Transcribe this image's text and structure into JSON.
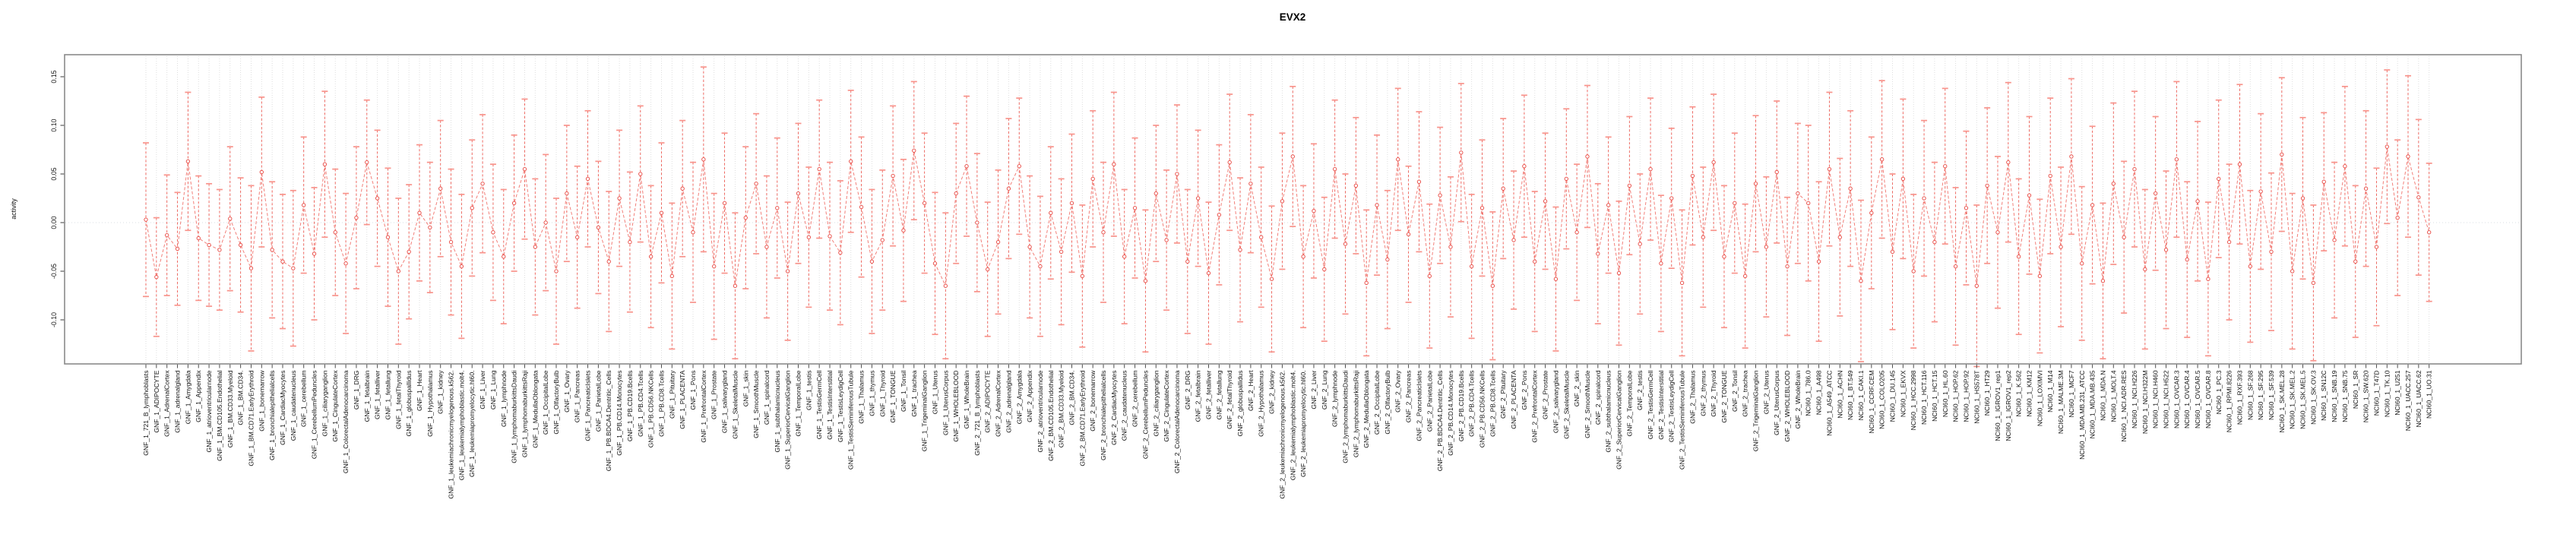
{
  "page": {
    "title": "EVX2"
  },
  "chart_data": {
    "type": "line",
    "subtype": "point-estimates-with-confidence-intervals",
    "title": "EVX2",
    "xlabel": "",
    "ylabel": "activity",
    "ylim": [
      -0.145,
      0.173
    ],
    "yticks": [
      -0.1,
      -0.05,
      0.0,
      0.05,
      0.1,
      0.15
    ],
    "ytick_labels": [
      "-0.10",
      "-0.05",
      "0.00",
      "0.05",
      "0.10",
      "0.15"
    ],
    "grid": {
      "vertical_dotted_per_category": true,
      "horizontal_dotted_zero_line": true
    },
    "legend": "none",
    "colors": {
      "error_bar_line": "#ee5a52",
      "error_bar_cap": "#f8938b",
      "connector_line": "#f2807a",
      "marker_stroke": "#e8453f",
      "marker_fill": "#ffffff",
      "gridline": "#dbdbdb",
      "zero_line": "#d9dee3",
      "frame": "#8a8a8a",
      "text": "#111111"
    },
    "categories": [
      "GNF_1_721_B_lymphoblasts",
      "GNF_1_ADIPOCYTE",
      "GNF_1_AdrenalCortex",
      "GNF_1_adrenalgland",
      "GNF_1_Amygdala",
      "GNF_1_Appendix",
      "GNF_1_atrioventricularnode",
      "GNF_1_BM.CD105.Endothelial",
      "GNF_1_BM.CD33.Myeloid",
      "GNF_1_BM.CD34.",
      "GNF_1_BM.CD71.EarlyErythroid",
      "GNF_1_bonemarrow",
      "GNF_1_bronchialepithelialcells",
      "GNF_1_CardiacMyocytes",
      "GNF_1_caudatenucleus",
      "GNF_1_cerebellum",
      "GNF_1_CerebellumPeduncles",
      "GNF_1_ciliaryganglion",
      "GNF_1_CingulateCortex",
      "GNF_1_ColorectalAdenocarcinoma",
      "GNF_1_DRG",
      "GNF_1_fetalbrain",
      "GNF_1_fetalliver",
      "GNF_1_fetallung",
      "GNF_1_fetalThyroid",
      "GNF_1_globuspallidus",
      "GNF_1_Heart",
      "GNF_1_Hypothalamus",
      "GNF_1_kidney",
      "GNF_1_leukemiachronicmyelogenous.k562.",
      "GNF_1_leukemialymphoblastic.molt4.",
      "GNF_1_leukemiapromyelocytic.hl60.",
      "GNF_1_Liver",
      "GNF_1_Lung",
      "GNF_1_lymphnode",
      "GNF_1_lymphomaburkittsDaudi",
      "GNF_1_lymphomaburkittsRaji",
      "GNF_1_MedullaOblongata",
      "GNF_1_OccipitalLobe",
      "GNF_1_OlfactoryBulb",
      "GNF_1_Ovary",
      "GNF_1_Pancreas",
      "GNF_1_PancreaticIslets",
      "GNF_1_ParietalLobe",
      "GNF_1_PB.BDCA4.Dentritic_Cells",
      "GNF_1_PB.CD14.Monocytes",
      "GNF_1_PB.CD19.Bcells",
      "GNF_1_PB.CD4.Tcells",
      "GNF_1_PB.CD56.NKCells",
      "GNF_1_PB.CD8.Tcells",
      "GNF_1_Pituitary",
      "GNF_1_PLACENTA",
      "GNF_1_Pons",
      "GNF_1_PrefrontalCortex",
      "GNF_1_Prostate",
      "GNF_1_salivarygland",
      "GNF_1_SkeletalMuscle",
      "GNF_1_skin",
      "GNF_1_SmoothMuscle",
      "GNF_1_spinalcord",
      "GNF_1_subthalamicnucleus",
      "GNF_1_SuperiorCervicalGanglion",
      "GNF_1_TemporalLobe",
      "GNF_1_testis",
      "GNF_1_TestisGermCell",
      "GNF_1_TestisInterstitial",
      "GNF_1_TestisLeydigCell",
      "GNF_1_TestisSeminiferousTubule",
      "GNF_1_Thalamus",
      "GNF_1_thymus",
      "GNF_1_Thyroid",
      "GNF_1_TONGUE",
      "GNF_1_Tonsil",
      "GNF_1_trachea",
      "GNF_1_TrigeminalGanglion",
      "GNF_1_Uterus",
      "GNF_1_UterusCorpus",
      "GNF_1_WHOLEBLOOD",
      "GNF_1_WholeBrain",
      "GNF_2_721_B_lymphoblasts",
      "GNF_2_ADIPOCYTE",
      "GNF_2_AdrenalCortex",
      "GNF_2_adrenalgland",
      "GNF_2_Amygdala",
      "GNF_2_Appendix",
      "GNF_2_atrioventricularnode",
      "GNF_2_BM.CD105.Endothelial",
      "GNF_2_BM.CD33.Myeloid",
      "GNF_2_BM.CD34.",
      "GNF_2_BM.CD71.EarlyErythroid",
      "GNF_2_bonemarrow",
      "GNF_2_bronchialepithelialcells",
      "GNF_2_CardiacMyocytes",
      "GNF_2_caudatenucleus",
      "GNF_2_cerebellum",
      "GNF_2_CerebellumPeduncles",
      "GNF_2_ciliaryganglion",
      "GNF_2_CingulateCortex",
      "GNF_2_ColorectalAdenocarcinoma",
      "GNF_2_DRG",
      "GNF_2_fetalbrain",
      "GNF_2_fetalliver",
      "GNF_2_fetallung",
      "GNF_2_fetalThyroid",
      "GNF_2_globuspallidus",
      "GNF_2_Heart",
      "GNF_2_Hypothalamus",
      "GNF_2_kidney",
      "GNF_2_leukemiachronicmyelogenous.k562.",
      "GNF_2_leukemialymphoblastic.molt4.",
      "GNF_2_leukemiapromyelocytic.hl60.",
      "GNF_2_Liver",
      "GNF_2_Lung",
      "GNF_2_lymphnode",
      "GNF_2_lymphomaburkittsDaudi",
      "GNF_2_lymphomaburkittsRaji",
      "GNF_2_MedullaOblongata",
      "GNF_2_OccipitalLobe",
      "GNF_2_OlfactoryBulb",
      "GNF_2_Ovary",
      "GNF_2_Pancreas",
      "GNF_2_PancreaticIslets",
      "GNF_2_ParietalLobe",
      "GNF_2_PB.BDCA4.Dentritic_Cells",
      "GNF_2_PB.CD14.Monocytes",
      "GNF_2_PB.CD19.Bcells",
      "GNF_2_PB.CD4.Tcells",
      "GNF_2_PB.CD56.NKCells",
      "GNF_2_PB.CD8.Tcells",
      "GNF_2_Pituitary",
      "GNF_2_PLACENTA",
      "GNF_2_Pons",
      "GNF_2_PrefrontalCortex",
      "GNF_2_Prostate",
      "GNF_2_salivarygland",
      "GNF_2_SkeletalMuscle",
      "GNF_2_skin",
      "GNF_2_SmoothMuscle",
      "GNF_2_spinalcord",
      "GNF_2_subthalamicnucleus",
      "GNF_2_SuperiorCervicalGanglion",
      "GNF_2_TemporalLobe",
      "GNF_2_testis",
      "GNF_2_TestisGermCell",
      "GNF_2_TestisInterstitial",
      "GNF_2_TestisLeydigCell",
      "GNF_2_TestisSeminiferousTubule",
      "GNF_2_Thalamus",
      "GNF_2_thymus",
      "GNF_2_Thyroid",
      "GNF_2_TONGUE",
      "GNF_2_Tonsil",
      "GNF_2_trachea",
      "GNF_2_TrigeminalGanglion",
      "GNF_2_Uterus",
      "GNF_2_UterusCorpus",
      "GNF_2_WHOLEBLOOD",
      "GNF_2_WholeBrain",
      "NCI60_1_786.0",
      "NCI60_1_A498",
      "NCI60_1_A549_ATCC",
      "NCI60_1_ACHN",
      "NCI60_1_BT.549",
      "NCI60_1_CAKI.1",
      "NCI60_1_CCRF.CEM",
      "NCI60_1_COLO205",
      "NCI60_1_DU.145",
      "NCI60_1_EKVX",
      "NCI60_1_HCC.2998",
      "NCI60_1_HCT.116",
      "NCI60_1_HCT.15",
      "NCI60_1_HL.60",
      "NCI60_1_HOP.62",
      "NCI60_1_HOP.92",
      "NCI60_1_HS578T",
      "NCI60_1_HT29",
      "NCI60_1_IGROV1_rep1",
      "NCI60_1_IGROV1_rep2",
      "NCI60_1_K.562",
      "NCI60_1_KM12",
      "NCI60_1_LOXIMVI",
      "NCI60_1_M14",
      "NCI60_1_MALME.3M",
      "NCI60_1_MCF7",
      "NCI60_1_MDA.MB.231_ATCC",
      "NCI60_1_MDA.MB.435",
      "NCI60_1_MDA.N",
      "NCI60_1_MOLT.4",
      "NCI60_1_NCI.ADR.RES",
      "NCI60_1_NCI.H226",
      "NCI60_1_NCI.H322M",
      "NCI60_1_NCI.H460",
      "NCI60_1_NCI.H522",
      "NCI60_1_OVCAR.3",
      "NCI60_1_OVCAR.4",
      "NCI60_1_OVCAR.5",
      "NCI60_1_OVCAR.8",
      "NCI60_1_PC.3",
      "NCI60_1_RPMI.8226",
      "NCI60_1_RXF.393",
      "NCI60_1_SF.268",
      "NCI60_1_SF.295",
      "NCI60_1_SF.539",
      "NCI60_1_SK.MEL.28",
      "NCI60_1_SK.MEL.2",
      "NCI60_1_SK.MEL.5",
      "NCI60_1_SK.OV.3",
      "NCI60_1_SN12C",
      "NCI60_1_SNB.19",
      "NCI60_1_SNB.75",
      "NCI60_1_SR",
      "NCI60_1_SW.620",
      "NCI60_1_T47D",
      "NCI60_1_TK.10",
      "NCI60_1_U251",
      "NCI60_1_UACC.257",
      "NCI60_1_UACC.62",
      "NCI60_1_UO.31"
    ],
    "series": [
      {
        "name": "activity",
        "means": [
          0.003,
          -0.056,
          -0.013,
          -0.027,
          0.063,
          -0.016,
          -0.023,
          -0.028,
          0.004,
          -0.023,
          -0.047,
          0.052,
          -0.028,
          -0.04,
          -0.047,
          0.018,
          -0.032,
          0.06,
          -0.01,
          -0.042,
          0.005,
          0.062,
          0.025,
          -0.015,
          -0.05,
          -0.03,
          0.01,
          -0.005,
          0.035,
          -0.02,
          -0.045,
          0.015,
          0.04,
          -0.01,
          -0.035,
          0.02,
          0.055,
          -0.025,
          0.0,
          -0.05,
          0.03,
          -0.015,
          0.045,
          -0.005,
          -0.04,
          0.025,
          -0.02,
          0.05,
          -0.035,
          0.01,
          -0.055,
          0.035,
          -0.01,
          0.065,
          -0.045,
          0.02,
          -0.065,
          0.005,
          0.04,
          -0.025,
          0.015,
          -0.05,
          0.03,
          -0.015,
          0.055,
          -0.014,
          -0.031,
          0.063,
          0.016,
          -0.04,
          -0.018,
          0.048,
          -0.008,
          0.074,
          0.02,
          -0.042,
          -0.065,
          0.03,
          0.058,
          0.0,
          -0.048,
          -0.02,
          0.035,
          0.058,
          -0.025,
          -0.045,
          0.01,
          -0.03,
          0.02,
          -0.055,
          0.045,
          -0.01,
          0.06,
          -0.035,
          0.015,
          -0.06,
          0.03,
          -0.018,
          0.05,
          -0.04,
          0.025,
          -0.052,
          0.008,
          0.062,
          -0.028,
          0.04,
          -0.015,
          -0.058,
          0.022,
          0.068,
          -0.035,
          0.012,
          -0.048,
          0.055,
          -0.022,
          0.038,
          -0.062,
          0.018,
          -0.038,
          0.065,
          -0.012,
          0.042,
          -0.055,
          0.028,
          -0.025,
          0.072,
          -0.045,
          0.015,
          -0.065,
          0.035,
          -0.018,
          0.058,
          -0.04,
          0.022,
          -0.058,
          0.045,
          -0.01,
          0.068,
          -0.032,
          0.018,
          -0.052,
          0.038,
          -0.022,
          0.055,
          -0.042,
          0.025,
          -0.062,
          0.048,
          -0.015,
          0.062,
          -0.035,
          0.02,
          -0.055,
          0.04,
          -0.025,
          0.052,
          -0.045,
          0.03,
          0.02,
          -0.04,
          0.055,
          -0.015,
          0.035,
          -0.06,
          0.01,
          0.065,
          -0.03,
          0.045,
          -0.05,
          0.025,
          -0.02,
          0.058,
          -0.045,
          0.015,
          -0.065,
          0.038,
          -0.01,
          0.062,
          -0.035,
          0.028,
          -0.055,
          0.048,
          -0.025,
          0.068,
          -0.042,
          0.018,
          -0.06,
          0.04,
          -0.015,
          0.055,
          -0.048,
          0.03,
          -0.028,
          0.065,
          -0.038,
          0.022,
          -0.058,
          0.045,
          -0.02,
          0.06,
          -0.045,
          0.032,
          -0.03,
          0.07,
          -0.05,
          0.025,
          -0.062,
          0.042,
          -0.018,
          0.058,
          -0.04,
          0.035,
          -0.025,
          0.078,
          0.005,
          0.068,
          0.026,
          -0.01
        ],
        "ci_halfwidth": [
          0.079,
          0.061,
          0.062,
          0.058,
          0.071,
          0.064,
          0.063,
          0.062,
          0.074,
          0.069,
          0.085,
          0.077,
          0.07,
          0.069,
          0.08,
          0.07,
          0.068,
          0.075,
          0.065,
          0.072,
          0.073,
          0.064,
          0.07,
          0.071,
          0.075,
          0.069,
          0.07,
          0.067,
          0.07,
          0.075,
          0.074,
          0.07,
          0.071,
          0.07,
          0.069,
          0.07,
          0.072,
          0.07,
          0.07,
          0.075,
          0.07,
          0.073,
          0.07,
          0.068,
          0.072,
          0.07,
          0.072,
          0.07,
          0.073,
          0.072,
          0.075,
          0.07,
          0.072,
          0.095,
          0.075,
          0.072,
          0.075,
          0.073,
          0.072,
          0.073,
          0.072,
          0.071,
          0.072,
          0.072,
          0.071,
          0.076,
          0.074,
          0.073,
          0.072,
          0.074,
          0.072,
          0.072,
          0.073,
          0.071,
          0.072,
          0.073,
          0.075,
          0.072,
          0.072,
          0.071,
          0.069,
          0.074,
          0.072,
          0.07,
          0.073,
          0.072,
          0.068,
          0.075,
          0.071,
          0.073,
          0.07,
          0.072,
          0.074,
          0.069,
          0.072,
          0.073,
          0.07,
          0.072,
          0.071,
          0.074,
          0.07,
          0.073,
          0.072,
          0.07,
          0.074,
          0.071,
          0.072,
          0.075,
          0.07,
          0.072,
          0.073,
          0.069,
          0.074,
          0.071,
          0.072,
          0.07,
          0.075,
          0.072,
          0.071,
          0.073,
          0.07,
          0.072,
          0.074,
          0.07,
          0.072,
          0.071,
          0.074,
          0.07,
          0.076,
          0.072,
          0.071,
          0.073,
          0.072,
          0.07,
          0.074,
          0.072,
          0.07,
          0.073,
          0.072,
          0.07,
          0.074,
          0.071,
          0.072,
          0.073,
          0.07,
          0.072,
          0.075,
          0.071,
          0.072,
          0.07,
          0.073,
          0.072,
          0.074,
          0.07,
          0.072,
          0.073,
          0.071,
          0.072,
          0.08,
          0.082,
          0.079,
          0.081,
          0.08,
          0.083,
          0.078,
          0.081,
          0.08,
          0.082,
          0.079,
          0.08,
          0.082,
          0.08,
          0.081,
          0.079,
          0.083,
          0.08,
          0.078,
          0.082,
          0.08,
          0.081,
          0.079,
          0.08,
          0.082,
          0.08,
          0.079,
          0.081,
          0.08,
          0.083,
          0.078,
          0.08,
          0.082,
          0.079,
          0.081,
          0.08,
          0.08,
          0.082,
          0.079,
          0.081,
          0.08,
          0.082,
          0.078,
          0.08,
          0.081,
          0.079,
          0.08,
          0.083,
          0.08,
          0.071,
          0.08,
          0.082,
          0.078,
          0.08,
          0.081,
          0.079,
          0.08,
          0.083,
          0.08,
          0.071
        ]
      }
    ]
  }
}
